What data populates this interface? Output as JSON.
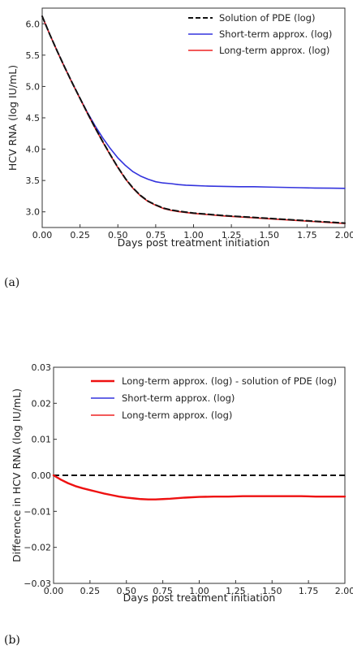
{
  "chart_data": [
    {
      "type": "line",
      "panel_label": "(a)",
      "xlabel": "Days post treatment initiation",
      "ylabel": "HCV RNA (log IU/mL)",
      "xlim": [
        0,
        2
      ],
      "ylim": [
        2.75,
        6.25
      ],
      "xticks": [
        0,
        0.25,
        0.5,
        0.75,
        1.0,
        1.25,
        1.5,
        1.75,
        2.0
      ],
      "xtick_labels": [
        "0.00",
        "0.25",
        "0.50",
        "0.75",
        "1.00",
        "1.25",
        "1.50",
        "1.75",
        "2.00"
      ],
      "yticks": [
        3.0,
        3.5,
        4.0,
        4.5,
        5.0,
        5.5,
        6.0
      ],
      "ytick_labels": [
        "3.0",
        "3.5",
        "4.0",
        "4.5",
        "5.0",
        "5.5",
        "6.0"
      ],
      "grid": false,
      "legend_position": "top-right",
      "series": [
        {
          "name": "Solution of PDE (log)",
          "color": "#111111",
          "style": "dashed",
          "x": [
            0,
            0.05,
            0.1,
            0.15,
            0.2,
            0.25,
            0.3,
            0.35,
            0.4,
            0.45,
            0.5,
            0.55,
            0.6,
            0.65,
            0.7,
            0.75,
            0.8,
            0.85,
            0.9,
            0.95,
            1.0,
            1.1,
            1.2,
            1.3,
            1.4,
            1.5,
            1.6,
            1.7,
            1.8,
            1.9,
            2.0
          ],
          "y": [
            6.12,
            5.83,
            5.56,
            5.3,
            5.05,
            4.81,
            4.57,
            4.34,
            4.12,
            3.91,
            3.71,
            3.53,
            3.38,
            3.26,
            3.17,
            3.11,
            3.06,
            3.03,
            3.01,
            2.995,
            2.98,
            2.96,
            2.94,
            2.925,
            2.91,
            2.895,
            2.88,
            2.865,
            2.85,
            2.835,
            2.82
          ]
        },
        {
          "name": "Short-term approx. (log)",
          "color": "#3333dd",
          "style": "solid",
          "x": [
            0,
            0.05,
            0.1,
            0.15,
            0.2,
            0.25,
            0.3,
            0.35,
            0.4,
            0.45,
            0.5,
            0.55,
            0.6,
            0.65,
            0.7,
            0.75,
            0.8,
            0.85,
            0.9,
            0.95,
            1.0,
            1.1,
            1.2,
            1.3,
            1.4,
            1.5,
            1.6,
            1.7,
            1.8,
            1.9,
            2.0
          ],
          "y": [
            6.12,
            5.83,
            5.56,
            5.3,
            5.05,
            4.81,
            4.58,
            4.37,
            4.18,
            4.01,
            3.86,
            3.74,
            3.64,
            3.57,
            3.52,
            3.48,
            3.46,
            3.45,
            3.435,
            3.425,
            3.42,
            3.41,
            3.405,
            3.4,
            3.4,
            3.395,
            3.39,
            3.385,
            3.38,
            3.378,
            3.375
          ]
        },
        {
          "name": "Long-term approx. (log)",
          "color": "#ee2222",
          "style": "solid",
          "x": [
            0,
            0.05,
            0.1,
            0.15,
            0.2,
            0.25,
            0.3,
            0.35,
            0.4,
            0.45,
            0.5,
            0.55,
            0.6,
            0.65,
            0.7,
            0.75,
            0.8,
            0.85,
            0.9,
            0.95,
            1.0,
            1.1,
            1.2,
            1.3,
            1.4,
            1.5,
            1.6,
            1.7,
            1.8,
            1.9,
            2.0
          ],
          "y": [
            6.12,
            5.83,
            5.555,
            5.295,
            5.045,
            4.805,
            4.565,
            4.335,
            4.115,
            3.905,
            3.705,
            3.525,
            3.374,
            3.254,
            3.164,
            3.104,
            3.054,
            3.024,
            3.004,
            2.989,
            2.974,
            2.954,
            2.934,
            2.919,
            2.904,
            2.889,
            2.874,
            2.859,
            2.844,
            2.829,
            2.814
          ]
        }
      ]
    },
    {
      "type": "line",
      "panel_label": "(b)",
      "xlabel": "Days post treatment initiation",
      "ylabel": "Difference in HCV RNA (log IU/mL)",
      "xlim": [
        0,
        2
      ],
      "ylim": [
        -0.03,
        0.03
      ],
      "xticks": [
        0,
        0.25,
        0.5,
        0.75,
        1.0,
        1.25,
        1.5,
        1.75,
        2.0
      ],
      "xtick_labels": [
        "0.00",
        "0.25",
        "0.50",
        "0.75",
        "1.00",
        "1.25",
        "1.50",
        "1.75",
        "2.00"
      ],
      "yticks": [
        -0.03,
        -0.02,
        -0.01,
        0.0,
        0.01,
        0.02,
        0.03
      ],
      "ytick_labels": [
        "−0.03",
        "−0.02",
        "−0.01",
        "0.00",
        "0.01",
        "0.02",
        "0.03"
      ],
      "grid": false,
      "legend_position": "top-right",
      "series": [
        {
          "name": "Long-term approx. (log) - solution of PDE (log)",
          "color": "#ee1111",
          "style": "solid",
          "width": 2.4,
          "x": [
            0,
            0.05,
            0.1,
            0.15,
            0.2,
            0.25,
            0.3,
            0.35,
            0.4,
            0.45,
            0.5,
            0.55,
            0.6,
            0.65,
            0.7,
            0.75,
            0.8,
            0.9,
            1.0,
            1.1,
            1.2,
            1.3,
            1.4,
            1.5,
            1.6,
            1.7,
            1.8,
            1.9,
            2.0
          ],
          "y": [
            0,
            -0.0012,
            -0.0022,
            -0.003,
            -0.0036,
            -0.0041,
            -0.0046,
            -0.0051,
            -0.0055,
            -0.0059,
            -0.0062,
            -0.0064,
            -0.0066,
            -0.0067,
            -0.0067,
            -0.0066,
            -0.0065,
            -0.0062,
            -0.006,
            -0.0059,
            -0.0059,
            -0.0058,
            -0.0058,
            -0.0058,
            -0.0058,
            -0.0058,
            -0.0059,
            -0.0059,
            -0.0059
          ]
        },
        {
          "name": "Short-term approx. (log)",
          "color": "#3333dd",
          "style": "solid",
          "width": 1.4,
          "x": [],
          "y": []
        },
        {
          "name": "Long-term approx. (log)",
          "color": "#ee2222",
          "style": "solid",
          "width": 1.4,
          "x": [],
          "y": []
        }
      ],
      "reference_line": {
        "y": 0,
        "color": "#111111",
        "style": "dashed"
      }
    }
  ]
}
